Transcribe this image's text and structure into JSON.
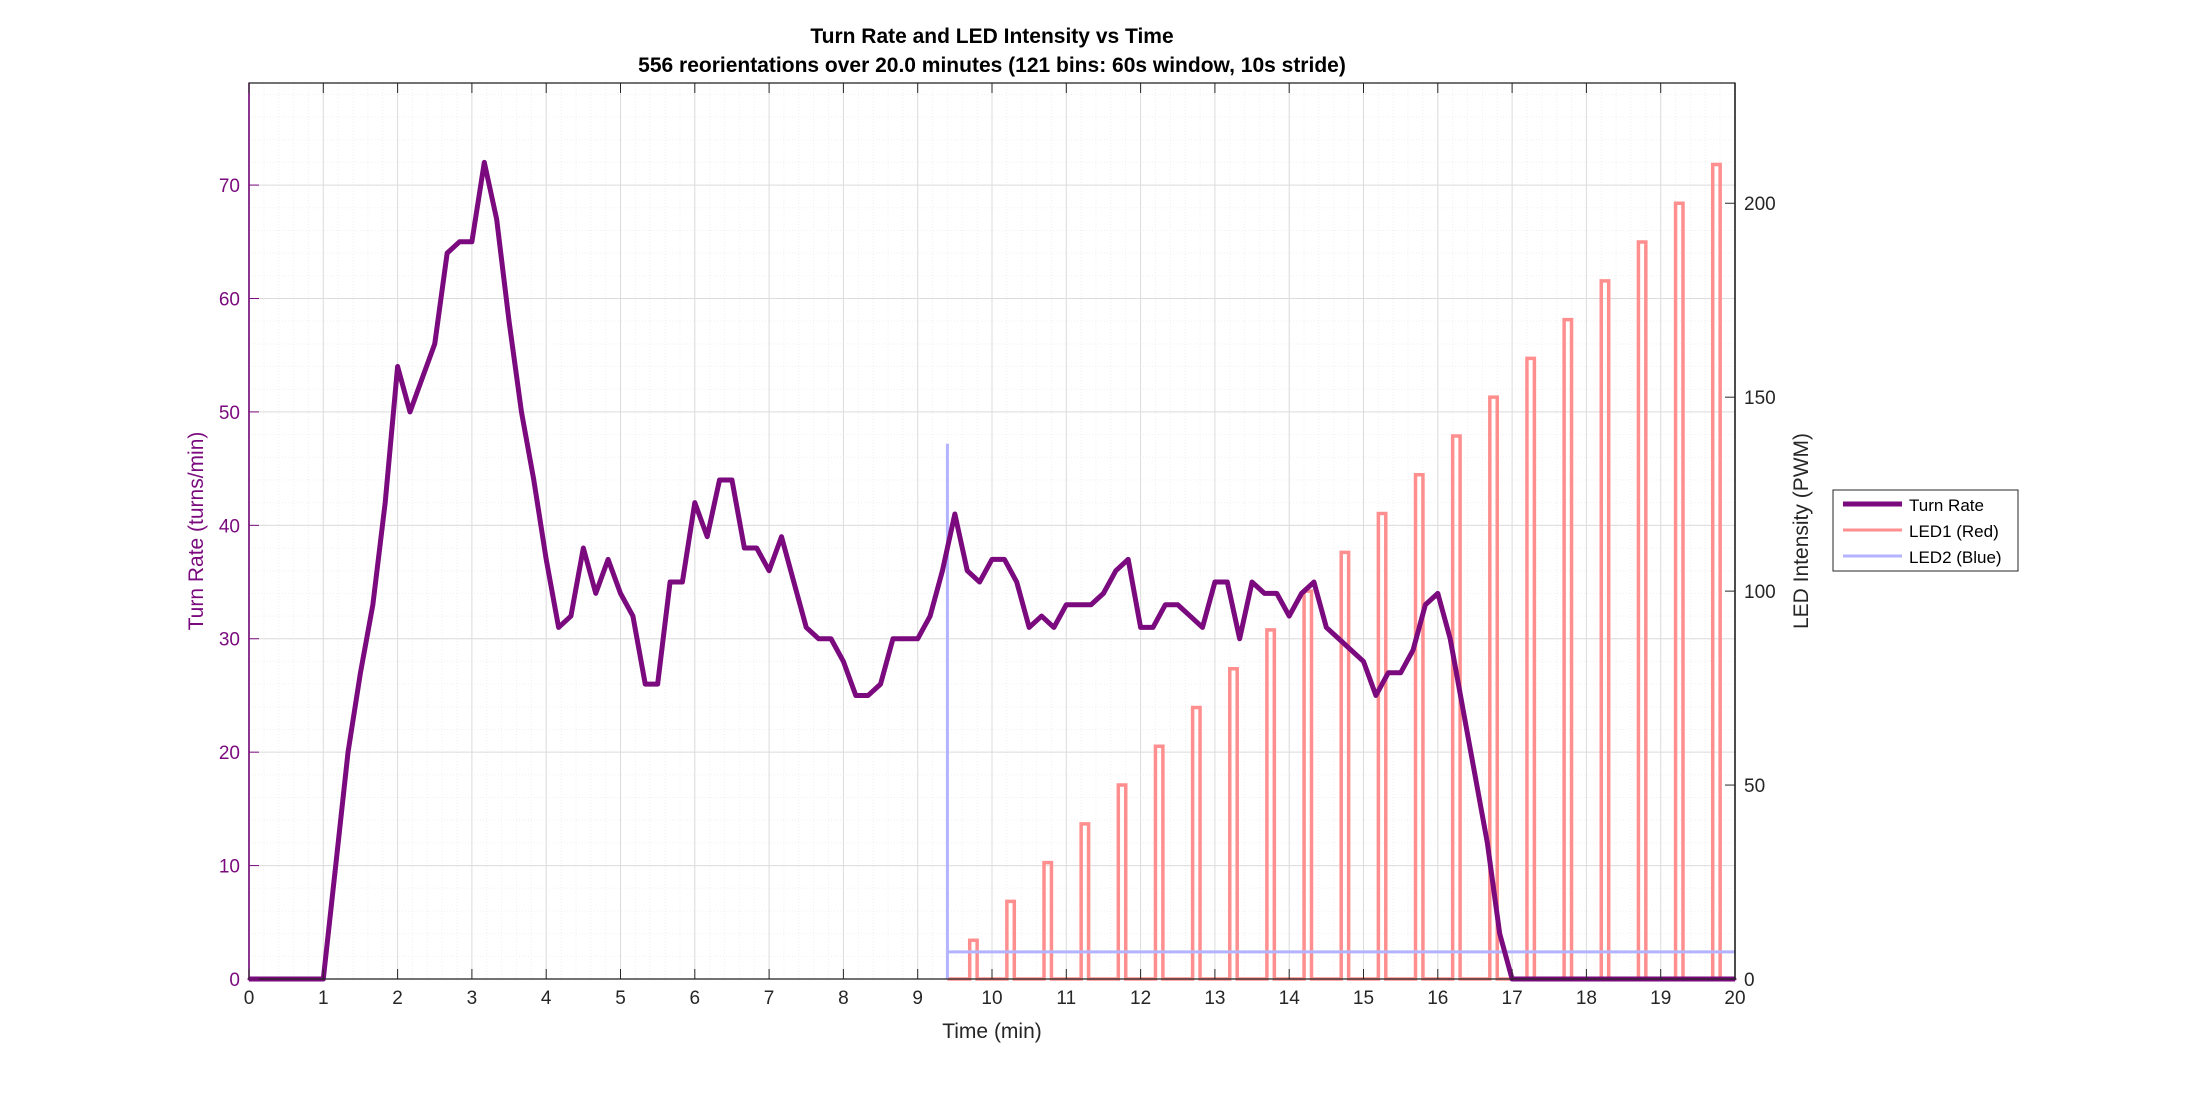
{
  "chart_data": {
    "type": "line",
    "title": "Turn Rate and LED Intensity vs Time",
    "subtitle": "556 reorientations over 20.0 minutes (121 bins: 60s window, 10s stride)",
    "xlabel": "Time (min)",
    "ylabel_left": "Turn Rate (turns/min)",
    "ylabel_right": "LED Intensity (PWM)",
    "xlim": [
      0,
      20
    ],
    "ylim_left": [
      0,
      79
    ],
    "ylim_right": [
      0,
      231
    ],
    "x_ticks": [
      0,
      1,
      2,
      3,
      4,
      5,
      6,
      7,
      8,
      9,
      10,
      11,
      12,
      13,
      14,
      15,
      16,
      17,
      18,
      19,
      20
    ],
    "y_ticks_left": [
      0,
      10,
      20,
      30,
      40,
      50,
      60,
      70
    ],
    "y_ticks_right": [
      0,
      50,
      100,
      150,
      200
    ],
    "grid": true,
    "minor_grid": true,
    "legend_position": "right",
    "colors": {
      "turn_rate": "#7a0a7e",
      "led1": "#ff8f8f",
      "led2": "#b3b3ff",
      "left_axis": "#7a0a7e",
      "right_axis": "#000000"
    },
    "series": [
      {
        "name": "Turn Rate",
        "axis": "left",
        "x": [
          0,
          0.167,
          0.333,
          0.5,
          0.667,
          0.833,
          1.0,
          1.167,
          1.333,
          1.5,
          1.667,
          1.833,
          2.0,
          2.167,
          2.333,
          2.5,
          2.667,
          2.833,
          3.0,
          3.167,
          3.333,
          3.5,
          3.667,
          3.833,
          4.0,
          4.167,
          4.333,
          4.5,
          4.667,
          4.833,
          5.0,
          5.167,
          5.333,
          5.5,
          5.667,
          5.833,
          6.0,
          6.167,
          6.333,
          6.5,
          6.667,
          6.833,
          7.0,
          7.167,
          7.333,
          7.5,
          7.667,
          7.833,
          8.0,
          8.167,
          8.333,
          8.5,
          8.667,
          8.833,
          9.0,
          9.167,
          9.333,
          9.5,
          9.667,
          9.833,
          10.0,
          10.167,
          10.333,
          10.5,
          10.667,
          10.833,
          11.0,
          11.167,
          11.333,
          11.5,
          11.667,
          11.833,
          12.0,
          12.167,
          12.333,
          12.5,
          12.667,
          12.833,
          13.0,
          13.167,
          13.333,
          13.5,
          13.667,
          13.833,
          14.0,
          14.167,
          14.333,
          14.5,
          14.667,
          14.833,
          15.0,
          15.167,
          15.333,
          15.5,
          15.667,
          15.833,
          16.0,
          16.167,
          16.333,
          16.5,
          16.667,
          16.833,
          17.0,
          17.167,
          17.333,
          17.5,
          17.667,
          17.833,
          18.0,
          18.167,
          18.333,
          18.5,
          18.667,
          18.833,
          19.0,
          19.167,
          19.333,
          19.5,
          19.667,
          19.833,
          20.0
        ],
        "values": [
          0,
          0,
          0,
          0,
          0,
          0,
          0,
          10,
          20,
          27,
          33,
          42,
          54,
          50,
          53,
          56,
          64,
          65,
          65,
          72,
          67,
          58,
          50,
          44,
          37,
          31,
          32,
          38,
          34,
          37,
          34,
          32,
          26,
          26,
          35,
          35,
          42,
          39,
          44,
          44,
          38,
          38,
          36,
          39,
          35,
          31,
          30,
          30,
          28,
          25,
          25,
          26,
          30,
          30,
          30,
          32,
          36,
          41,
          36,
          35,
          37,
          37,
          35,
          31,
          32,
          31,
          33,
          33,
          33,
          34,
          36,
          37,
          31,
          31,
          33,
          33,
          32,
          31,
          35,
          35,
          30,
          35,
          34,
          34,
          32,
          34,
          35,
          31,
          30,
          29,
          28,
          25,
          27,
          27,
          29,
          33,
          34,
          30,
          24,
          18,
          12,
          4,
          0,
          0,
          0,
          0,
          0,
          0,
          0,
          0,
          0,
          0,
          0,
          0,
          0,
          0,
          0,
          0,
          0,
          0,
          0
        ]
      },
      {
        "name": "LED1 (Red)",
        "axis": "right",
        "style": "pulses",
        "pulse_width_min": 0.1,
        "baseline": 0,
        "pulse_start": [
          9.7,
          10.2,
          10.7,
          11.2,
          11.7,
          12.2,
          12.7,
          13.2,
          13.7,
          14.2,
          14.7,
          15.2,
          15.7,
          16.2,
          16.7,
          17.2,
          17.7,
          18.2,
          18.7,
          19.2,
          19.7
        ],
        "values": [
          10,
          20,
          30,
          40,
          50,
          60,
          70,
          80,
          90,
          100,
          110,
          120,
          130,
          140,
          150,
          160,
          170,
          180,
          190,
          200,
          210
        ]
      },
      {
        "name": "LED2 (Blue)",
        "axis": "right",
        "style": "step",
        "spike_x": 9.4,
        "spike_value": 138,
        "start_x": 9.4,
        "level": 7
      }
    ]
  }
}
